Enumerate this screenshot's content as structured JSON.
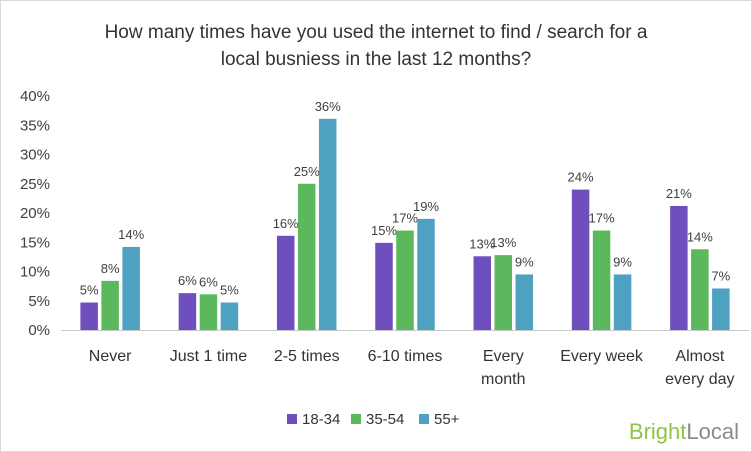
{
  "chart_data": {
    "type": "bar",
    "title_lines": [
      "How many times have you used the internet to find / search for a",
      "local busniess in the last 12 months?"
    ],
    "categories": [
      [
        "Never"
      ],
      [
        "Just 1 time"
      ],
      [
        "2-5 times"
      ],
      [
        "6-10 times"
      ],
      [
        "Every",
        "month"
      ],
      [
        "Every week"
      ],
      [
        "Almost",
        "every day"
      ]
    ],
    "series": [
      {
        "name": "18-34",
        "color": "#6f4ebd",
        "values": [
          4.7,
          6.3,
          16.1,
          14.9,
          12.6,
          24.0,
          21.2
        ],
        "labels": [
          "5%",
          "6%",
          "16%",
          "15%",
          "13%",
          "24%",
          "21%"
        ]
      },
      {
        "name": "35-54",
        "color": "#5cb85c",
        "values": [
          8.4,
          6.1,
          25.0,
          17.0,
          12.8,
          17.0,
          13.8
        ],
        "labels": [
          "8%",
          "6%",
          "25%",
          "17%",
          "13%",
          "17%",
          "14%"
        ]
      },
      {
        "name": "55+",
        "color": "#4ea1c1",
        "values": [
          14.2,
          4.7,
          36.1,
          19.0,
          9.5,
          9.5,
          7.1
        ],
        "labels": [
          "14%",
          "5%",
          "36%",
          "19%",
          "9%",
          "9%",
          "7%"
        ]
      }
    ],
    "y_ticks": [
      "0%",
      "5%",
      "10%",
      "15%",
      "20%",
      "25%",
      "30%",
      "35%",
      "40%"
    ],
    "ylim": [
      0,
      40
    ],
    "grid": false,
    "legend_position": "bottom"
  },
  "brand": {
    "part1": "Bright",
    "part2": "Local"
  }
}
